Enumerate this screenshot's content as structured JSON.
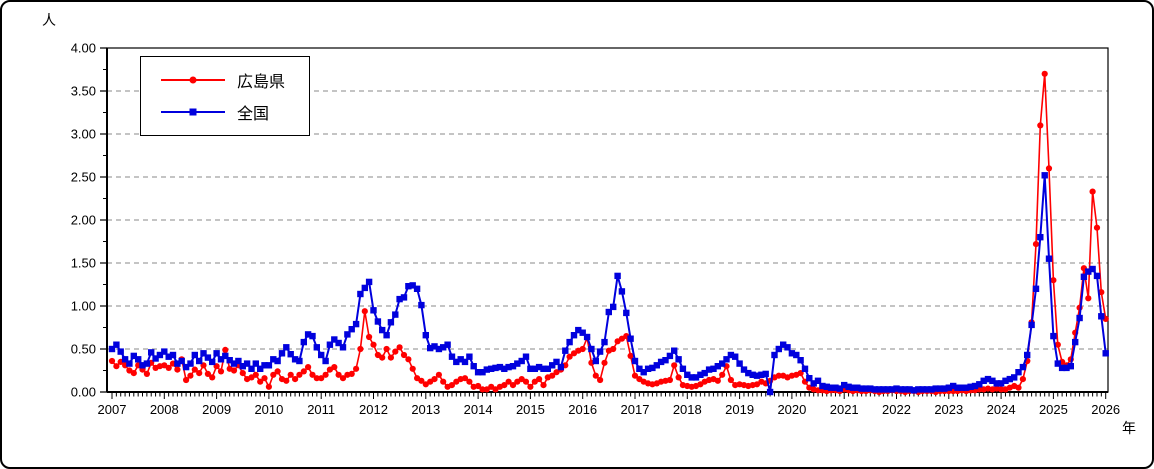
{
  "window": {
    "background": "#FFFFFF",
    "border_color": "#000000"
  },
  "chart_data": {
    "type": "line",
    "title": "",
    "y_axis_label": "人",
    "x_axis_label": "年",
    "ylim": [
      0,
      4
    ],
    "y_ticks": [
      "0.00",
      "0.50",
      "1.00",
      "1.50",
      "2.00",
      "2.50",
      "3.00",
      "3.50",
      "4.00"
    ],
    "x_tick_years": [
      "2007",
      "2008",
      "2009",
      "2010",
      "2011",
      "2012",
      "2013",
      "2014",
      "2015",
      "2016",
      "2017",
      "2018",
      "2019",
      "2020",
      "2021",
      "2022",
      "2023",
      "2024",
      "2025",
      "2026"
    ],
    "start_year": 2007,
    "points_per_year": 12,
    "grid": {
      "horizontal_dashed_every": 0.5,
      "color": "#888888"
    },
    "legend_position": "top-left-inside",
    "series": [
      {
        "name": "広島県",
        "color": "#FF0000",
        "marker": "circle",
        "values": [
          0.36,
          0.3,
          0.35,
          0.31,
          0.25,
          0.22,
          0.31,
          0.26,
          0.21,
          0.34,
          0.28,
          0.3,
          0.31,
          0.28,
          0.33,
          0.26,
          0.38,
          0.14,
          0.19,
          0.26,
          0.22,
          0.31,
          0.21,
          0.17,
          0.3,
          0.24,
          0.49,
          0.27,
          0.25,
          0.31,
          0.22,
          0.15,
          0.17,
          0.2,
          0.12,
          0.16,
          0.06,
          0.2,
          0.24,
          0.15,
          0.13,
          0.2,
          0.15,
          0.2,
          0.24,
          0.29,
          0.2,
          0.16,
          0.16,
          0.2,
          0.26,
          0.29,
          0.2,
          0.16,
          0.2,
          0.21,
          0.27,
          0.5,
          0.94,
          0.64,
          0.55,
          0.43,
          0.4,
          0.5,
          0.4,
          0.47,
          0.52,
          0.43,
          0.38,
          0.27,
          0.16,
          0.13,
          0.09,
          0.12,
          0.15,
          0.2,
          0.12,
          0.06,
          0.08,
          0.12,
          0.15,
          0.16,
          0.12,
          0.06,
          0.07,
          0.03,
          0.03,
          0.06,
          0.03,
          0.06,
          0.08,
          0.12,
          0.08,
          0.12,
          0.15,
          0.12,
          0.06,
          0.12,
          0.15,
          0.08,
          0.17,
          0.19,
          0.23,
          0.26,
          0.31,
          0.41,
          0.45,
          0.48,
          0.5,
          0.63,
          0.34,
          0.19,
          0.14,
          0.34,
          0.48,
          0.5,
          0.59,
          0.62,
          0.65,
          0.42,
          0.19,
          0.15,
          0.12,
          0.1,
          0.09,
          0.1,
          0.12,
          0.13,
          0.14,
          0.31,
          0.17,
          0.08,
          0.07,
          0.06,
          0.07,
          0.09,
          0.12,
          0.14,
          0.15,
          0.13,
          0.2,
          0.3,
          0.14,
          0.08,
          0.09,
          0.08,
          0.07,
          0.08,
          0.09,
          0.12,
          0.1,
          0.13,
          0.17,
          0.19,
          0.19,
          0.17,
          0.19,
          0.2,
          0.22,
          0.12,
          0.05,
          0.03,
          0.02,
          0.02,
          0.01,
          0.02,
          0.02,
          0.01,
          0.03,
          0.02,
          0.01,
          0.02,
          0.01,
          0.01,
          0.02,
          0.01,
          0.0,
          0.01,
          0.01,
          0.02,
          0.01,
          0.01,
          0.0,
          0.01,
          0.01,
          0.0,
          0.01,
          0.01,
          0.01,
          0.0,
          0.01,
          0.01,
          0.01,
          0.01,
          0.01,
          0.02,
          0.01,
          0.02,
          0.02,
          0.03,
          0.03,
          0.04,
          0.03,
          0.04,
          0.03,
          0.03,
          0.05,
          0.07,
          0.05,
          0.15,
          0.36,
          0.81,
          1.72,
          3.1,
          3.7,
          2.6,
          1.3,
          0.55,
          0.35,
          0.31,
          0.38,
          0.69,
          0.98,
          1.44,
          1.09,
          2.33,
          1.91,
          1.16,
          0.85
        ]
      },
      {
        "name": "全国",
        "color": "#0000DD",
        "marker": "square",
        "values": [
          0.5,
          0.55,
          0.47,
          0.38,
          0.33,
          0.42,
          0.38,
          0.31,
          0.33,
          0.46,
          0.39,
          0.43,
          0.47,
          0.41,
          0.43,
          0.33,
          0.36,
          0.29,
          0.33,
          0.43,
          0.36,
          0.45,
          0.4,
          0.35,
          0.45,
          0.38,
          0.42,
          0.37,
          0.33,
          0.36,
          0.3,
          0.33,
          0.27,
          0.33,
          0.27,
          0.31,
          0.31,
          0.38,
          0.36,
          0.45,
          0.52,
          0.44,
          0.38,
          0.36,
          0.58,
          0.67,
          0.65,
          0.52,
          0.43,
          0.36,
          0.55,
          0.61,
          0.57,
          0.52,
          0.67,
          0.73,
          0.79,
          1.14,
          1.21,
          1.28,
          0.95,
          0.82,
          0.72,
          0.66,
          0.81,
          0.9,
          1.08,
          1.1,
          1.23,
          1.24,
          1.2,
          1.01,
          0.66,
          0.51,
          0.53,
          0.5,
          0.52,
          0.55,
          0.41,
          0.35,
          0.38,
          0.35,
          0.41,
          0.3,
          0.23,
          0.23,
          0.26,
          0.27,
          0.28,
          0.29,
          0.27,
          0.29,
          0.3,
          0.33,
          0.36,
          0.41,
          0.27,
          0.27,
          0.29,
          0.27,
          0.27,
          0.31,
          0.35,
          0.29,
          0.48,
          0.58,
          0.66,
          0.72,
          0.69,
          0.64,
          0.5,
          0.36,
          0.47,
          0.58,
          0.93,
          0.99,
          1.35,
          1.17,
          0.92,
          0.62,
          0.36,
          0.27,
          0.23,
          0.27,
          0.28,
          0.31,
          0.35,
          0.37,
          0.42,
          0.48,
          0.38,
          0.27,
          0.2,
          0.17,
          0.17,
          0.2,
          0.22,
          0.26,
          0.27,
          0.3,
          0.33,
          0.38,
          0.43,
          0.41,
          0.33,
          0.26,
          0.22,
          0.2,
          0.19,
          0.2,
          0.21,
          0.0,
          0.43,
          0.5,
          0.55,
          0.52,
          0.45,
          0.43,
          0.37,
          0.27,
          0.16,
          0.1,
          0.13,
          0.07,
          0.06,
          0.05,
          0.05,
          0.04,
          0.08,
          0.06,
          0.05,
          0.05,
          0.04,
          0.04,
          0.04,
          0.03,
          0.03,
          0.03,
          0.03,
          0.03,
          0.04,
          0.03,
          0.03,
          0.03,
          0.02,
          0.03,
          0.03,
          0.03,
          0.03,
          0.04,
          0.04,
          0.04,
          0.05,
          0.07,
          0.05,
          0.05,
          0.05,
          0.06,
          0.07,
          0.09,
          0.13,
          0.15,
          0.13,
          0.1,
          0.1,
          0.13,
          0.15,
          0.17,
          0.23,
          0.29,
          0.43,
          0.78,
          1.2,
          1.8,
          2.52,
          1.55,
          0.65,
          0.33,
          0.28,
          0.28,
          0.3,
          0.58,
          0.86,
          1.34,
          1.4,
          1.43,
          1.35,
          0.88,
          0.45
        ]
      }
    ]
  }
}
